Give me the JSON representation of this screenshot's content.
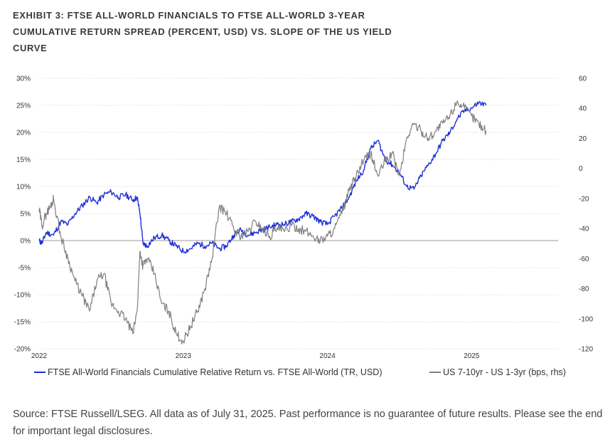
{
  "title_lines": [
    "EXHIBIT 3: FTSE ALL-WORLD FINANCIALS TO FTSE ALL-WORLD 3-YEAR",
    "CUMULATIVE RETURN SPREAD (PERCENT, USD) VS. SLOPE OF THE US YIELD",
    "CURVE"
  ],
  "chart_data": {
    "type": "line",
    "x_tick_labels": [
      "2022",
      "2023",
      "2024",
      "2025"
    ],
    "x_range": [
      2022.0,
      2025.6
    ],
    "y_left": {
      "ticks": [
        "30%",
        "25%",
        "20%",
        "15%",
        "10%",
        "5%",
        "0%",
        "-5%",
        "-10%",
        "-15%",
        "-20%"
      ],
      "range": [
        -20,
        30
      ]
    },
    "y_right": {
      "ticks": [
        "60",
        "40",
        "20",
        "0",
        "-20",
        "-40",
        "-60",
        "-80",
        "-100",
        "-120"
      ],
      "range": [
        -120,
        60
      ]
    },
    "series": [
      {
        "name": "FTSE All-World Financials Cumulative Relative Return vs. FTSE All-World (TR, USD)",
        "axis": "left",
        "color": "#1f2fd6",
        "x": [
          2022.0,
          2022.02,
          2022.05,
          2022.1,
          2022.15,
          2022.2,
          2022.25,
          2022.3,
          2022.35,
          2022.4,
          2022.45,
          2022.5,
          2022.55,
          2022.6,
          2022.65,
          2022.68,
          2022.7,
          2022.72,
          2022.75,
          2022.8,
          2022.85,
          2022.9,
          2022.95,
          2023.0,
          2023.05,
          2023.1,
          2023.15,
          2023.2,
          2023.25,
          2023.3,
          2023.35,
          2023.4,
          2023.45,
          2023.5,
          2023.55,
          2023.6,
          2023.65,
          2023.7,
          2023.75,
          2023.8,
          2023.85,
          2023.9,
          2023.95,
          2024.0,
          2024.05,
          2024.1,
          2024.15,
          2024.2,
          2024.25,
          2024.3,
          2024.35,
          2024.4,
          2024.45,
          2024.5,
          2024.55,
          2024.6,
          2024.65,
          2024.7,
          2024.75,
          2024.8,
          2024.85,
          2024.9,
          2024.95,
          2025.0,
          2025.05,
          2025.1
        ],
        "y": [
          0.0,
          -0.5,
          1.5,
          1.0,
          3.5,
          3.0,
          5.0,
          6.5,
          8.0,
          7.0,
          8.5,
          9.0,
          8.0,
          8.5,
          7.5,
          8.0,
          5.0,
          -0.5,
          -1.0,
          0.5,
          1.0,
          0.0,
          -1.0,
          -2.0,
          -1.5,
          -0.5,
          -1.0,
          -0.5,
          -1.5,
          -1.0,
          1.0,
          2.0,
          1.0,
          1.5,
          2.0,
          2.5,
          3.0,
          3.0,
          3.5,
          4.0,
          5.0,
          4.5,
          3.5,
          3.0,
          4.5,
          6.0,
          8.0,
          11.0,
          13.0,
          17.0,
          18.5,
          15.0,
          14.0,
          12.5,
          10.0,
          9.5,
          12.0,
          14.0,
          16.0,
          18.5,
          20.0,
          22.5,
          24.0,
          24.5,
          25.5,
          25.0
        ]
      },
      {
        "name": "US 7-10yr - US 1-3yr (bps, rhs)",
        "axis": "right",
        "color": "#7f7f7f",
        "x": [
          2022.0,
          2022.02,
          2022.05,
          2022.08,
          2022.1,
          2022.15,
          2022.2,
          2022.25,
          2022.3,
          2022.35,
          2022.4,
          2022.45,
          2022.5,
          2022.55,
          2022.6,
          2022.65,
          2022.68,
          2022.7,
          2022.72,
          2022.75,
          2022.8,
          2022.85,
          2022.9,
          2022.95,
          2023.0,
          2023.05,
          2023.1,
          2023.15,
          2023.2,
          2023.25,
          2023.3,
          2023.35,
          2023.4,
          2023.45,
          2023.5,
          2023.55,
          2023.6,
          2023.65,
          2023.7,
          2023.75,
          2023.8,
          2023.85,
          2023.9,
          2023.95,
          2024.0,
          2024.05,
          2024.1,
          2024.15,
          2024.2,
          2024.25,
          2024.3,
          2024.35,
          2024.4,
          2024.45,
          2024.5,
          2024.55,
          2024.6,
          2024.65,
          2024.7,
          2024.75,
          2024.8,
          2024.85,
          2024.9,
          2024.95,
          2025.0,
          2025.05,
          2025.1
        ],
        "y": [
          -27,
          -38,
          -30,
          -25,
          -20,
          -45,
          -60,
          -75,
          -85,
          -95,
          -75,
          -70,
          -90,
          -95,
          -100,
          -110,
          -95,
          -55,
          -65,
          -60,
          -70,
          -90,
          -95,
          -110,
          -115,
          -105,
          -95,
          -80,
          -60,
          -25,
          -30,
          -40,
          -45,
          -42,
          -35,
          -40,
          -45,
          -40,
          -42,
          -38,
          -40,
          -42,
          -45,
          -48,
          -45,
          -40,
          -30,
          -15,
          -5,
          5,
          10,
          -5,
          5,
          10,
          -5,
          20,
          30,
          25,
          20,
          25,
          30,
          35,
          45,
          40,
          35,
          30,
          25
        ]
      }
    ]
  },
  "legend": [
    {
      "label": "FTSE All-World Financials Cumulative Relative Return vs. FTSE All-World (TR, USD)",
      "color": "#1f2fd6"
    },
    {
      "label": "US 7-10yr - US 1-3yr (bps, rhs)",
      "color": "#7f7f7f"
    }
  ],
  "source_text": "Source: FTSE Russell/LSEG. All data as of July 31, 2025. Past performance is no guarantee of future results. Please see the end for important legal disclosures."
}
